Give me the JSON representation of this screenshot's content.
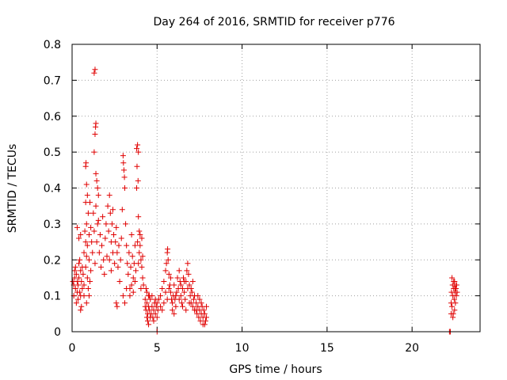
{
  "chart_data": {
    "type": "scatter",
    "title": "Day 264 of 2016, SRMTID for receiver p776",
    "xlabel": "GPS time / hours",
    "ylabel": "SRMTID / TECUs",
    "xlim": [
      0,
      24
    ],
    "ylim": [
      0,
      0.8
    ],
    "xticks": [
      "0",
      "5",
      "10",
      "15",
      "20"
    ],
    "yticks": [
      "0",
      "0.1",
      "0.2",
      "0.3",
      "0.4",
      "0.5",
      "0.6",
      "0.7",
      "0.8"
    ],
    "grid": true,
    "marker": "+",
    "color": "#e00000",
    "series": [
      {
        "name": "SRMTID",
        "points": [
          [
            0.05,
            0.14
          ],
          [
            0.1,
            0.13
          ],
          [
            0.15,
            0.15
          ],
          [
            0.2,
            0.12
          ],
          [
            0.25,
            0.16
          ],
          [
            0.3,
            0.14
          ],
          [
            0.35,
            0.13
          ],
          [
            0.4,
            0.15
          ],
          [
            0.45,
            0.11
          ],
          [
            0.5,
            0.17
          ],
          [
            0.55,
            0.14
          ],
          [
            0.6,
            0.12
          ],
          [
            0.65,
            0.16
          ],
          [
            0.7,
            0.13
          ],
          [
            0.1,
            0.1
          ],
          [
            0.2,
            0.18
          ],
          [
            0.3,
            0.11
          ],
          [
            0.4,
            0.19
          ],
          [
            0.5,
            0.1
          ],
          [
            0.6,
            0.18
          ],
          [
            0.35,
            0.09
          ],
          [
            0.45,
            0.2
          ],
          [
            0.25,
            0.08
          ],
          [
            0.55,
            0.07
          ],
          [
            0.5,
            0.06
          ],
          [
            0.7,
            0.1
          ],
          [
            0.15,
            0.17
          ],
          [
            0.4,
            0.26
          ],
          [
            0.3,
            0.29
          ],
          [
            0.5,
            0.27
          ],
          [
            0.7,
            0.22
          ],
          [
            0.75,
            0.28
          ],
          [
            0.8,
            0.25
          ],
          [
            0.85,
            0.3
          ],
          [
            0.9,
            0.24
          ],
          [
            0.95,
            0.33
          ],
          [
            1.0,
            0.27
          ],
          [
            1.05,
            0.36
          ],
          [
            1.1,
            0.29
          ],
          [
            1.15,
            0.25
          ],
          [
            0.8,
            0.18
          ],
          [
            0.85,
            0.21
          ],
          [
            0.9,
            0.15
          ],
          [
            1.0,
            0.2
          ],
          [
            1.1,
            0.17
          ],
          [
            0.8,
            0.36
          ],
          [
            0.85,
            0.41
          ],
          [
            0.8,
            0.46
          ],
          [
            0.82,
            0.47
          ],
          [
            0.9,
            0.38
          ],
          [
            0.95,
            0.12
          ],
          [
            1.0,
            0.1
          ],
          [
            0.85,
            0.08
          ],
          [
            1.05,
            0.14
          ],
          [
            1.2,
            0.22
          ],
          [
            1.25,
            0.33
          ],
          [
            1.3,
            0.28
          ],
          [
            1.35,
            0.19
          ],
          [
            1.4,
            0.35
          ],
          [
            1.45,
            0.25
          ],
          [
            1.3,
            0.72
          ],
          [
            1.35,
            0.73
          ],
          [
            1.4,
            0.58
          ],
          [
            1.38,
            0.57
          ],
          [
            1.35,
            0.55
          ],
          [
            1.3,
            0.5
          ],
          [
            1.4,
            0.44
          ],
          [
            1.45,
            0.42
          ],
          [
            1.5,
            0.4
          ],
          [
            1.55,
            0.38
          ],
          [
            1.5,
            0.3
          ],
          [
            1.55,
            0.31
          ],
          [
            1.6,
            0.22
          ],
          [
            1.65,
            0.27
          ],
          [
            1.7,
            0.18
          ],
          [
            1.75,
            0.24
          ],
          [
            1.8,
            0.32
          ],
          [
            1.85,
            0.2
          ],
          [
            1.9,
            0.16
          ],
          [
            1.95,
            0.26
          ],
          [
            2.0,
            0.3
          ],
          [
            2.05,
            0.21
          ],
          [
            2.1,
            0.35
          ],
          [
            2.15,
            0.28
          ],
          [
            2.2,
            0.38
          ],
          [
            2.25,
            0.33
          ],
          [
            2.3,
            0.25
          ],
          [
            2.35,
            0.3
          ],
          [
            2.4,
            0.34
          ],
          [
            2.45,
            0.27
          ],
          [
            2.2,
            0.2
          ],
          [
            2.3,
            0.17
          ],
          [
            2.4,
            0.22
          ],
          [
            2.5,
            0.19
          ],
          [
            2.55,
            0.25
          ],
          [
            2.6,
            0.29
          ],
          [
            2.65,
            0.22
          ],
          [
            2.7,
            0.18
          ],
          [
            2.75,
            0.24
          ],
          [
            2.8,
            0.14
          ],
          [
            2.85,
            0.2
          ],
          [
            2.9,
            0.26
          ],
          [
            2.95,
            0.34
          ],
          [
            3.0,
            0.49
          ],
          [
            3.02,
            0.47
          ],
          [
            3.05,
            0.45
          ],
          [
            3.08,
            0.43
          ],
          [
            3.1,
            0.4
          ],
          [
            3.15,
            0.3
          ],
          [
            3.2,
            0.24
          ],
          [
            3.25,
            0.19
          ],
          [
            3.3,
            0.16
          ],
          [
            3.35,
            0.22
          ],
          [
            3.4,
            0.12
          ],
          [
            3.45,
            0.18
          ],
          [
            3.5,
            0.27
          ],
          [
            3.55,
            0.21
          ],
          [
            3.6,
            0.15
          ],
          [
            3.65,
            0.19
          ],
          [
            3.7,
            0.24
          ],
          [
            2.6,
            0.08
          ],
          [
            2.65,
            0.07
          ],
          [
            3.0,
            0.1
          ],
          [
            3.1,
            0.08
          ],
          [
            3.2,
            0.12
          ],
          [
            3.4,
            0.1
          ],
          [
            3.5,
            0.13
          ],
          [
            3.6,
            0.11
          ],
          [
            3.7,
            0.14
          ],
          [
            3.75,
            0.17
          ],
          [
            3.8,
            0.51
          ],
          [
            3.85,
            0.52
          ],
          [
            3.9,
            0.5
          ],
          [
            3.82,
            0.46
          ],
          [
            3.88,
            0.42
          ],
          [
            3.8,
            0.4
          ],
          [
            3.9,
            0.32
          ],
          [
            3.95,
            0.28
          ],
          [
            4.0,
            0.24
          ],
          [
            4.05,
            0.2
          ],
          [
            4.1,
            0.18
          ],
          [
            4.15,
            0.15
          ],
          [
            4.2,
            0.13
          ],
          [
            4.0,
            0.27
          ],
          [
            3.95,
            0.22
          ],
          [
            4.1,
            0.26
          ],
          [
            3.85,
            0.25
          ],
          [
            3.9,
            0.19
          ],
          [
            4.05,
            0.12
          ],
          [
            4.15,
            0.21
          ],
          [
            4.3,
            0.07
          ],
          [
            4.35,
            0.06
          ],
          [
            4.4,
            0.08
          ],
          [
            4.45,
            0.05
          ],
          [
            4.5,
            0.07
          ],
          [
            4.55,
            0.06
          ],
          [
            4.6,
            0.09
          ],
          [
            4.65,
            0.05
          ],
          [
            4.7,
            0.07
          ],
          [
            4.75,
            0.04
          ],
          [
            4.8,
            0.06
          ],
          [
            4.85,
            0.08
          ],
          [
            4.9,
            0.05
          ],
          [
            4.95,
            0.07
          ],
          [
            5.0,
            0.04
          ],
          [
            4.3,
            0.09
          ],
          [
            4.4,
            0.11
          ],
          [
            4.5,
            0.1
          ],
          [
            4.6,
            0.04
          ],
          [
            4.7,
            0.1
          ],
          [
            4.5,
            0.02
          ],
          [
            4.4,
            0.04
          ],
          [
            4.8,
            0.03
          ],
          [
            5.0,
            0.08
          ],
          [
            5.05,
            0.06
          ],
          [
            5.0,
            0.0
          ],
          [
            4.35,
            0.12
          ],
          [
            4.45,
            0.03
          ],
          [
            4.55,
            0.1
          ],
          [
            4.9,
            0.09
          ],
          [
            5.1,
            0.09
          ],
          [
            5.2,
            0.1
          ],
          [
            5.3,
            0.12
          ],
          [
            5.4,
            0.14
          ],
          [
            5.5,
            0.17
          ],
          [
            5.55,
            0.19
          ],
          [
            5.6,
            0.22
          ],
          [
            5.62,
            0.23
          ],
          [
            5.65,
            0.2
          ],
          [
            5.7,
            0.16
          ],
          [
            5.75,
            0.13
          ],
          [
            5.8,
            0.11
          ],
          [
            5.85,
            0.09
          ],
          [
            5.9,
            0.08
          ],
          [
            5.95,
            0.1
          ],
          [
            6.0,
            0.13
          ],
          [
            6.05,
            0.09
          ],
          [
            6.1,
            0.07
          ],
          [
            6.15,
            0.11
          ],
          [
            6.2,
            0.15
          ],
          [
            5.2,
            0.07
          ],
          [
            5.3,
            0.06
          ],
          [
            5.4,
            0.08
          ],
          [
            5.5,
            0.11
          ],
          [
            5.6,
            0.09
          ],
          [
            5.7,
            0.12
          ],
          [
            5.8,
            0.15
          ],
          [
            5.9,
            0.06
          ],
          [
            6.0,
            0.05
          ],
          [
            6.1,
            0.1
          ],
          [
            6.25,
            0.12
          ],
          [
            6.3,
            0.17
          ],
          [
            6.35,
            0.14
          ],
          [
            6.4,
            0.1
          ],
          [
            6.45,
            0.08
          ],
          [
            6.5,
            0.12
          ],
          [
            6.55,
            0.15
          ],
          [
            6.6,
            0.11
          ],
          [
            6.65,
            0.09
          ],
          [
            6.7,
            0.14
          ],
          [
            6.75,
            0.17
          ],
          [
            6.8,
            0.19
          ],
          [
            6.85,
            0.16
          ],
          [
            6.9,
            0.13
          ],
          [
            6.95,
            0.1
          ],
          [
            7.0,
            0.08
          ],
          [
            7.05,
            0.11
          ],
          [
            7.1,
            0.14
          ],
          [
            7.15,
            0.09
          ],
          [
            7.2,
            0.06
          ],
          [
            6.3,
            0.09
          ],
          [
            6.4,
            0.13
          ],
          [
            6.5,
            0.07
          ],
          [
            6.6,
            0.14
          ],
          [
            6.7,
            0.06
          ],
          [
            6.8,
            0.12
          ],
          [
            6.9,
            0.08
          ],
          [
            7.0,
            0.12
          ],
          [
            7.1,
            0.07
          ],
          [
            7.2,
            0.1
          ],
          [
            7.3,
            0.06
          ],
          [
            7.35,
            0.05
          ],
          [
            7.4,
            0.07
          ],
          [
            7.45,
            0.04
          ],
          [
            7.5,
            0.06
          ],
          [
            7.55,
            0.03
          ],
          [
            7.6,
            0.05
          ],
          [
            7.65,
            0.07
          ],
          [
            7.7,
            0.04
          ],
          [
            7.75,
            0.06
          ],
          [
            7.8,
            0.05
          ],
          [
            7.85,
            0.03
          ],
          [
            7.9,
            0.07
          ],
          [
            7.6,
            0.08
          ],
          [
            7.7,
            0.02
          ],
          [
            7.5,
            0.09
          ],
          [
            7.8,
            0.02
          ],
          [
            7.4,
            0.1
          ],
          [
            7.3,
            0.08
          ],
          [
            7.9,
            0.04
          ],
          [
            22.2,
            0.0
          ],
          [
            22.25,
            0.0
          ],
          [
            22.3,
            0.08
          ],
          [
            22.32,
            0.11
          ],
          [
            22.35,
            0.07
          ],
          [
            22.38,
            0.13
          ],
          [
            22.4,
            0.1
          ],
          [
            22.42,
            0.05
          ],
          [
            22.45,
            0.12
          ],
          [
            22.48,
            0.09
          ],
          [
            22.5,
            0.14
          ],
          [
            22.52,
            0.11
          ],
          [
            22.55,
            0.08
          ],
          [
            22.58,
            0.12
          ],
          [
            22.6,
            0.1
          ],
          [
            22.62,
            0.13
          ],
          [
            22.65,
            0.11
          ],
          [
            22.35,
            0.15
          ],
          [
            22.4,
            0.04
          ],
          [
            22.5,
            0.06
          ],
          [
            22.45,
            0.14
          ],
          [
            22.55,
            0.12
          ],
          [
            22.6,
            0.13
          ],
          [
            22.3,
            0.05
          ],
          [
            22.5,
            0.13
          ]
        ]
      }
    ]
  }
}
